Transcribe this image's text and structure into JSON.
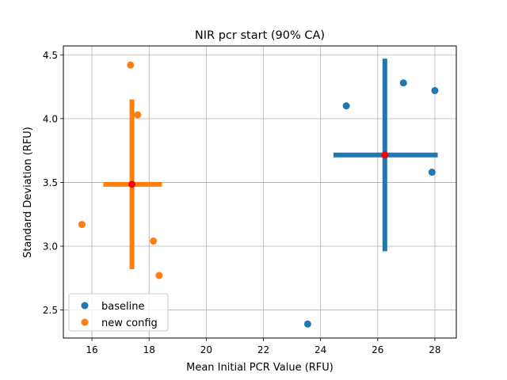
{
  "chart_data": {
    "type": "scatter",
    "title": "NIR pcr start (90% CA)",
    "xlabel": "Mean Initial PCR Value (RFU)",
    "ylabel": "Standard Deviation (RFU)",
    "xlim": [
      15.0,
      28.75
    ],
    "ylim": [
      2.28,
      4.57
    ],
    "xticks": [
      16,
      18,
      20,
      22,
      24,
      26,
      28
    ],
    "yticks": [
      2.5,
      3.0,
      3.5,
      4.0,
      4.5
    ],
    "xtick_labels": [
      "16",
      "18",
      "20",
      "22",
      "24",
      "26",
      "28"
    ],
    "ytick_labels": [
      "2.5",
      "3.0",
      "3.5",
      "4.0",
      "4.5"
    ],
    "grid": true,
    "legend_position": "lower-left",
    "series": [
      {
        "name": "baseline",
        "color": "#1f77b4",
        "points": [
          {
            "x": 24.9,
            "y": 4.1
          },
          {
            "x": 26.9,
            "y": 4.28
          },
          {
            "x": 28.0,
            "y": 4.22
          },
          {
            "x": 27.9,
            "y": 3.58
          },
          {
            "x": 23.55,
            "y": 2.39
          }
        ],
        "mean": {
          "x": 26.25,
          "y": 3.715
        },
        "error_x": [
          24.45,
          28.1
        ],
        "error_y": [
          2.96,
          4.47
        ]
      },
      {
        "name": "new config",
        "color": "#ff7f0e",
        "points": [
          {
            "x": 17.35,
            "y": 4.42
          },
          {
            "x": 17.6,
            "y": 4.03
          },
          {
            "x": 15.65,
            "y": 3.17
          },
          {
            "x": 18.15,
            "y": 3.04
          },
          {
            "x": 18.35,
            "y": 2.77
          }
        ],
        "mean": {
          "x": 17.4,
          "y": 3.485
        },
        "error_x": [
          16.4,
          18.45
        ],
        "error_y": [
          2.82,
          4.15
        ]
      }
    ],
    "mean_marker_color": "#ff0000"
  }
}
